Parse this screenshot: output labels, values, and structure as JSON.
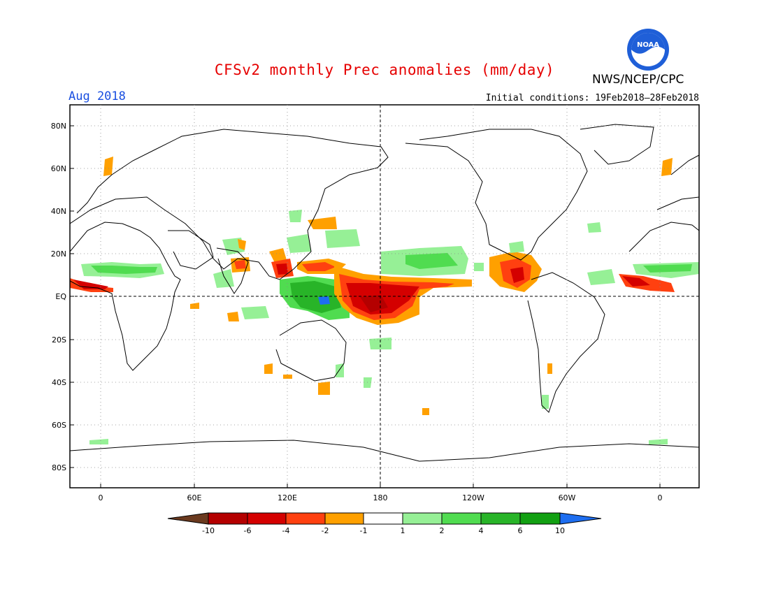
{
  "header": {
    "title": "CFSv2 monthly Prec anomalies (mm/day)",
    "month": "Aug 2018",
    "initial_conditions": "Initial conditions: 19Feb2018–28Feb2018",
    "agency": "NWS/NCEP/CPC",
    "logo_text": "NOAA"
  },
  "map": {
    "lat_labels": [
      "80N",
      "60N",
      "40N",
      "20N",
      "EQ",
      "20S",
      "40S",
      "60S",
      "80S"
    ],
    "lon_labels": [
      "0",
      "60E",
      "120E",
      "180",
      "120W",
      "60W",
      "0"
    ]
  },
  "colorbar": {
    "labels": [
      "-10",
      "-6",
      "-4",
      "-2",
      "-1",
      "1",
      "2",
      "4",
      "6",
      "10"
    ],
    "colors": [
      "#6b3a1f",
      "#b40000",
      "#d40000",
      "#ff4010",
      "#ffa000",
      "#ffffff",
      "#96f096",
      "#50dc50",
      "#28b428",
      "#12a012",
      "#1e6ef0"
    ]
  },
  "colors": {
    "title": "#e60000",
    "month": "#1a4fe0",
    "neg_strong": "#d40000",
    "neg_mod": "#ff4010",
    "neg_weak": "#ffa000",
    "pos_weak": "#96f096",
    "pos_mod": "#50dc50",
    "pos_strong": "#28b428"
  }
}
